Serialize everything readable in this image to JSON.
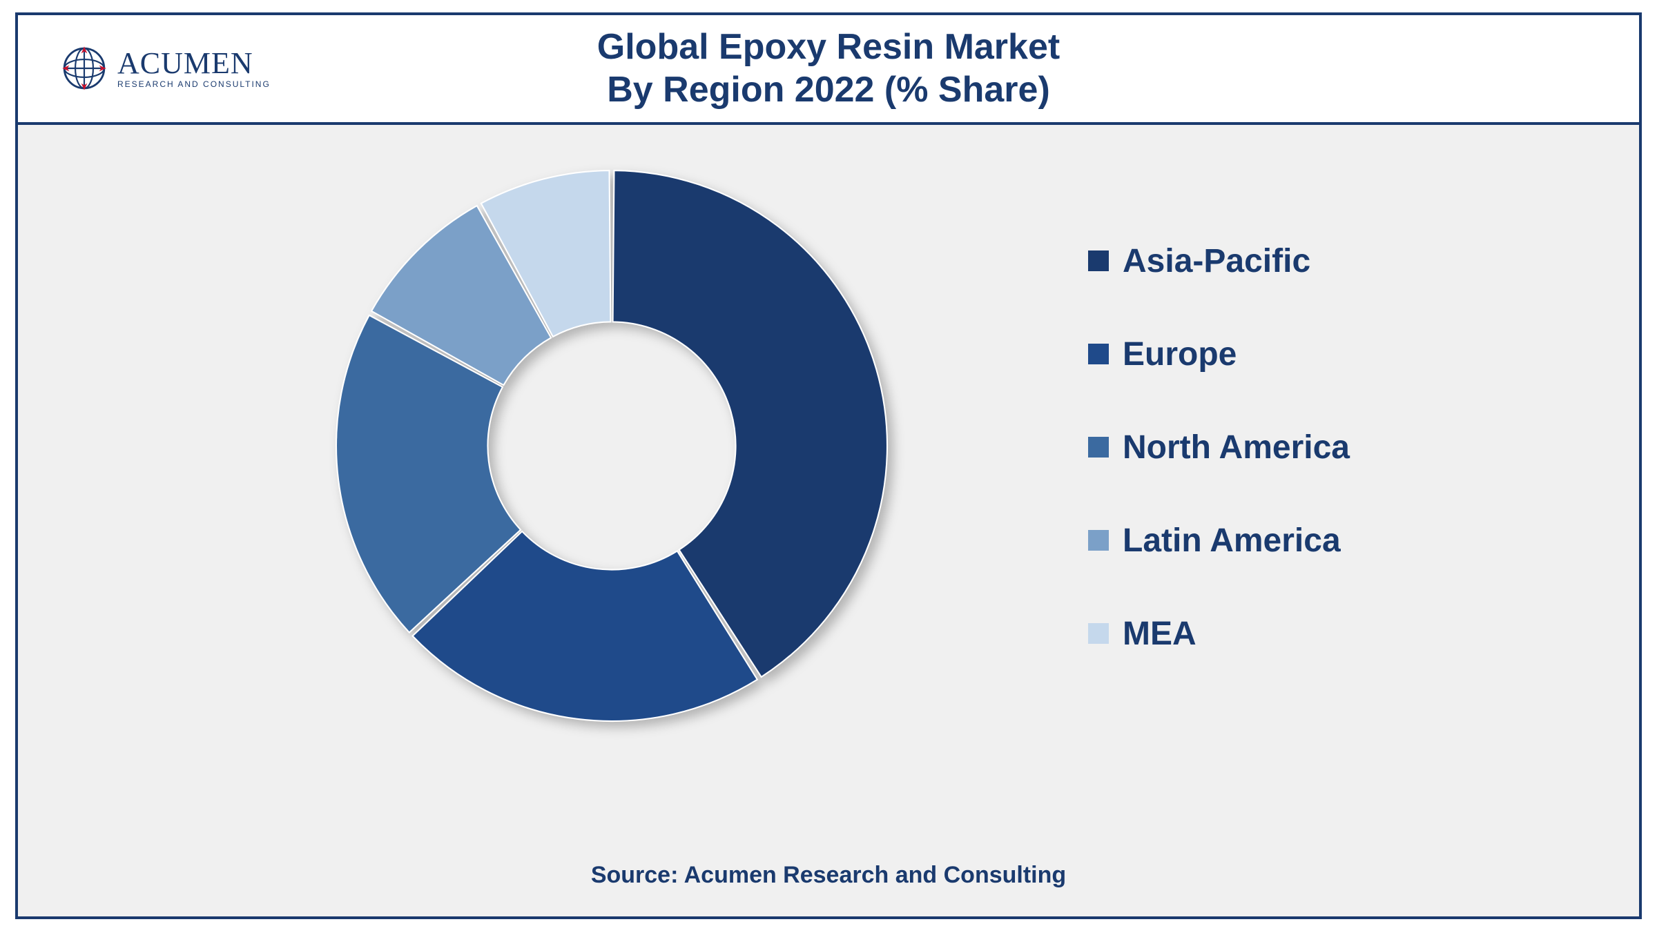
{
  "header": {
    "title_line1": "Global Epoxy Resin Market",
    "title_line2": "By Region 2022 (% Share)",
    "logo_brand": "ACUMEN",
    "logo_sub": "RESEARCH AND CONSULTING",
    "logo_globe_stroke": "#1a3a6e",
    "logo_globe_accent": "#c8102e"
  },
  "chart": {
    "type": "donut",
    "series": [
      {
        "label": "Asia-Pacific",
        "value": 41,
        "color": "#1a3a6e"
      },
      {
        "label": "Europe",
        "value": 22,
        "color": "#1f4a8a"
      },
      {
        "label": "North America",
        "value": 20,
        "color": "#3b6aa0"
      },
      {
        "label": "Latin America",
        "value": 9,
        "color": "#7ba0c8"
      },
      {
        "label": "MEA",
        "value": 8,
        "color": "#c5d8ec"
      }
    ],
    "inner_radius_ratio": 0.45,
    "outer_radius_ratio": 1.0,
    "start_angle_deg": -90,
    "background_color": "#f0f0f0",
    "slice_gap_deg": 1.0,
    "slice_gap_color": "#ffffff",
    "shadow": {
      "offset_x": 8,
      "offset_y": 8,
      "blur": 8,
      "color": "rgba(0,0,0,0.25)"
    }
  },
  "legend": {
    "title_color": "#1a3a6e",
    "label_fontsize": 48,
    "swatch_size": 30,
    "gap": 80
  },
  "source": "Source: Acumen Research and Consulting",
  "palette": {
    "border": "#1a3a6e",
    "panel_bg": "#f0f0f0",
    "header_bg": "#ffffff",
    "text_primary": "#1a3a6e"
  }
}
